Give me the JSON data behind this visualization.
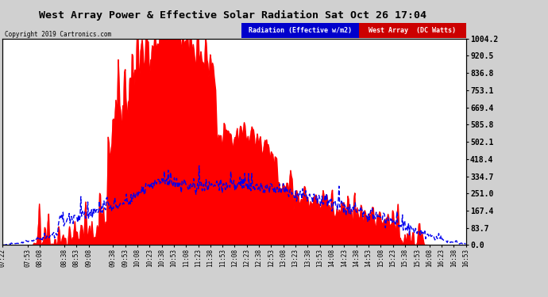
{
  "title": "West Array Power & Effective Solar Radiation Sat Oct 26 17:04",
  "copyright": "Copyright 2019 Cartronics.com",
  "legend_radiation": "Radiation (Effective w/m2)",
  "legend_west": "West Array  (DC Watts)",
  "yticks": [
    0.0,
    83.7,
    167.4,
    251.0,
    334.7,
    418.4,
    502.1,
    585.8,
    669.4,
    753.1,
    836.8,
    920.5,
    1004.2
  ],
  "ymax": 1004.2,
  "ymin": 0.0,
  "fig_bg_color": "#d0d0d0",
  "plot_bg_color": "#ffffff",
  "red_color": "#ff0000",
  "blue_color": "#0000ee",
  "grid_color": "#aaaaaa",
  "xtick_labels": [
    "07:22",
    "07:53",
    "08:08",
    "08:38",
    "08:53",
    "09:08",
    "09:38",
    "09:53",
    "10:08",
    "10:23",
    "10:38",
    "10:53",
    "11:08",
    "11:23",
    "11:38",
    "11:53",
    "12:08",
    "12:23",
    "12:38",
    "12:53",
    "13:08",
    "13:23",
    "13:38",
    "13:53",
    "14:08",
    "14:23",
    "14:38",
    "14:53",
    "15:08",
    "15:23",
    "15:38",
    "15:53",
    "16:08",
    "16:23",
    "16:38",
    "16:53"
  ]
}
